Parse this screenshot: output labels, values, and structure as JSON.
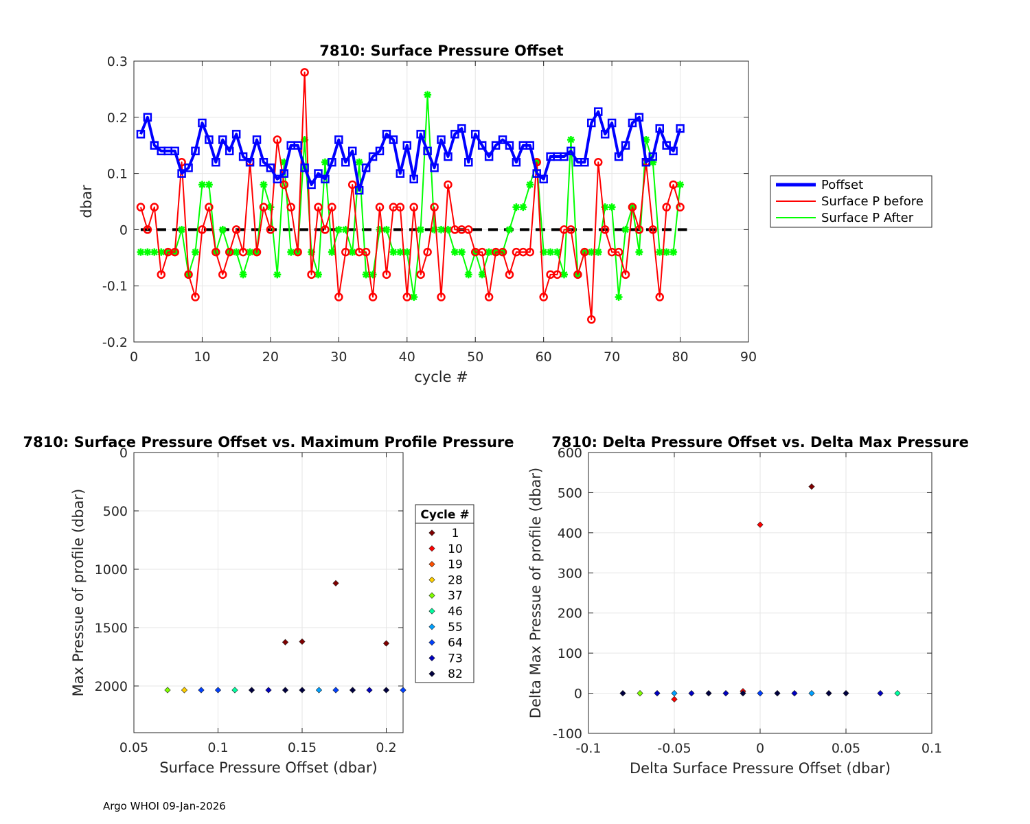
{
  "footer": "Argo WHOI 09-Jan-2026",
  "colors": {
    "poffset": "#0000ff",
    "before": "#ff0000",
    "after": "#00ff00",
    "zero_line": "#000000",
    "grid": "#e6e6e6",
    "cycle_colormap": [
      "#800000",
      "#ff0000",
      "#ff5000",
      "#ffd000",
      "#80ff00",
      "#00ffa0",
      "#00a0ff",
      "#0040ff",
      "#0000c0",
      "#000040"
    ]
  },
  "chart_data": [
    {
      "type": "line",
      "title": "7810: Surface Pressure Offset",
      "xlabel": "cycle #",
      "ylabel": "dbar",
      "xlim": [
        0,
        90
      ],
      "ylim": [
        -0.2,
        0.3
      ],
      "xticks": [
        0,
        10,
        20,
        30,
        40,
        50,
        60,
        70,
        80,
        90
      ],
      "yticks": [
        -0.2,
        -0.1,
        0,
        0.1,
        0.2,
        0.3
      ],
      "xtick_labels": [
        "0",
        "10",
        "20",
        "30",
        "40",
        "50",
        "60",
        "70",
        "80",
        "90"
      ],
      "ytick_labels": [
        "-0.2",
        "-0.1",
        "0",
        "0.1",
        "0.2",
        "0.3"
      ],
      "grid": true,
      "legend_position": "outside-right",
      "zero_line": {
        "x": [
          1,
          81
        ],
        "y": 0
      },
      "x": [
        1,
        2,
        3,
        4,
        5,
        6,
        7,
        8,
        9,
        10,
        11,
        12,
        13,
        14,
        15,
        16,
        17,
        18,
        19,
        20,
        21,
        22,
        23,
        24,
        25,
        26,
        27,
        28,
        29,
        30,
        31,
        32,
        33,
        34,
        35,
        36,
        37,
        38,
        39,
        40,
        41,
        42,
        43,
        44,
        45,
        46,
        47,
        48,
        49,
        50,
        51,
        52,
        53,
        54,
        55,
        56,
        57,
        58,
        59,
        60,
        61,
        62,
        63,
        64,
        65,
        66,
        67,
        68,
        69,
        70,
        71,
        72,
        73,
        74,
        75,
        76,
        77,
        78,
        79,
        80
      ],
      "series": [
        {
          "name": "Poffset",
          "marker": "square",
          "values": [
            0.17,
            0.2,
            0.15,
            0.14,
            0.14,
            0.14,
            0.1,
            0.11,
            0.14,
            0.19,
            0.16,
            0.12,
            0.16,
            0.14,
            0.17,
            0.13,
            0.12,
            0.16,
            0.12,
            0.11,
            0.09,
            0.1,
            0.15,
            0.15,
            0.11,
            0.08,
            0.1,
            0.09,
            0.12,
            0.16,
            0.12,
            0.14,
            0.07,
            0.11,
            0.13,
            0.14,
            0.17,
            0.16,
            0.1,
            0.15,
            0.09,
            0.17,
            0.14,
            0.11,
            0.16,
            0.13,
            0.17,
            0.18,
            0.12,
            0.17,
            0.15,
            0.13,
            0.15,
            0.16,
            0.15,
            0.12,
            0.15,
            0.15,
            0.1,
            0.09,
            0.13,
            0.13,
            0.13,
            0.14,
            0.12,
            0.12,
            0.19,
            0.21,
            0.17,
            0.19,
            0.13,
            0.15,
            0.19,
            0.2,
            0.12,
            0.13,
            0.18,
            0.15,
            0.14,
            0.18
          ]
        },
        {
          "name": "Surface P before",
          "marker": "circle",
          "values": [
            0.04,
            0.0,
            0.04,
            -0.08,
            -0.04,
            -0.04,
            0.12,
            -0.08,
            -0.12,
            0.0,
            0.04,
            -0.04,
            -0.08,
            -0.04,
            0.0,
            -0.04,
            0.12,
            -0.04,
            0.04,
            0.0,
            0.16,
            0.08,
            0.04,
            -0.04,
            0.28,
            -0.08,
            0.04,
            0.0,
            0.04,
            -0.12,
            -0.04,
            0.08,
            -0.04,
            -0.04,
            -0.12,
            0.04,
            -0.08,
            0.04,
            0.04,
            -0.12,
            0.04,
            -0.08,
            -0.04,
            0.04,
            -0.12,
            0.08,
            0.0,
            0.0,
            0.0,
            -0.04,
            -0.04,
            -0.12,
            -0.04,
            -0.04,
            -0.08,
            -0.04,
            -0.04,
            -0.04,
            0.12,
            -0.12,
            -0.08,
            -0.08,
            0.0,
            0.0,
            -0.08,
            -0.04,
            -0.16,
            0.12,
            0.0,
            -0.04,
            -0.04,
            -0.08,
            0.04,
            0.0,
            0.12,
            0.0,
            -0.12,
            0.04,
            0.08,
            0.04
          ]
        },
        {
          "name": "Surface P After",
          "marker": "asterisk",
          "values": [
            -0.04,
            -0.04,
            -0.04,
            -0.04,
            -0.04,
            -0.04,
            0.0,
            -0.08,
            -0.04,
            0.08,
            0.08,
            -0.04,
            0.0,
            -0.04,
            -0.04,
            -0.08,
            -0.04,
            -0.04,
            0.08,
            0.04,
            -0.08,
            0.12,
            -0.04,
            -0.04,
            0.16,
            -0.04,
            -0.08,
            0.12,
            -0.04,
            0.0,
            0.0,
            -0.04,
            0.12,
            -0.08,
            -0.08,
            0.0,
            0.0,
            -0.04,
            -0.04,
            -0.04,
            -0.12,
            0.0,
            0.24,
            0.0,
            0.0,
            0.0,
            -0.04,
            -0.04,
            -0.08,
            -0.04,
            -0.08,
            -0.04,
            -0.04,
            -0.04,
            0.0,
            0.04,
            0.04,
            0.08,
            0.12,
            -0.04,
            -0.04,
            -0.04,
            -0.08,
            0.16,
            -0.08,
            -0.04,
            -0.04,
            -0.04,
            0.04,
            0.04,
            -0.12,
            0.0,
            0.04,
            -0.04,
            0.16,
            0.12,
            -0.04,
            -0.04,
            -0.04,
            0.08
          ]
        }
      ]
    },
    {
      "type": "scatter",
      "title": "7810: Surface Pressure Offset vs. Maximum Profile Pressure",
      "xlabel": "Surface Pressure Offset (dbar)",
      "ylabel": "Max Pressue of profile (dbar)",
      "xlim": [
        0.05,
        0.21
      ],
      "ylim": [
        0,
        2400
      ],
      "y_reversed": true,
      "xticks": [
        0.05,
        0.1,
        0.15,
        0.2
      ],
      "yticks": [
        0,
        500,
        1000,
        1500,
        2000
      ],
      "xtick_labels": [
        "0.05",
        "0.1",
        "0.15",
        "0.2"
      ],
      "ytick_labels": [
        "0",
        "500",
        "1000",
        "1500",
        "2000"
      ],
      "grid": true,
      "legend": {
        "title": "Cycle #",
        "position": "outside-right",
        "entries": [
          "1",
          "10",
          "19",
          "28",
          "37",
          "46",
          "55",
          "64",
          "73",
          "82"
        ]
      },
      "points": [
        {
          "x": 0.17,
          "y": 1120,
          "c": 0
        },
        {
          "x": 0.14,
          "y": 1625,
          "c": 0
        },
        {
          "x": 0.15,
          "y": 1620,
          "c": 0
        },
        {
          "x": 0.2,
          "y": 1635,
          "c": 0
        },
        {
          "x": 0.07,
          "y": 2035,
          "c": 4
        },
        {
          "x": 0.08,
          "y": 2035,
          "c": 3
        },
        {
          "x": 0.09,
          "y": 2035,
          "c": 7
        },
        {
          "x": 0.1,
          "y": 2035,
          "c": 7
        },
        {
          "x": 0.11,
          "y": 2035,
          "c": 5
        },
        {
          "x": 0.12,
          "y": 2035,
          "c": 9
        },
        {
          "x": 0.13,
          "y": 2035,
          "c": 8
        },
        {
          "x": 0.14,
          "y": 2035,
          "c": 9
        },
        {
          "x": 0.15,
          "y": 2035,
          "c": 9
        },
        {
          "x": 0.16,
          "y": 2035,
          "c": 6
        },
        {
          "x": 0.17,
          "y": 2035,
          "c": 7
        },
        {
          "x": 0.18,
          "y": 2035,
          "c": 9
        },
        {
          "x": 0.19,
          "y": 2035,
          "c": 8
        },
        {
          "x": 0.2,
          "y": 2035,
          "c": 9
        },
        {
          "x": 0.21,
          "y": 2035,
          "c": 7
        }
      ]
    },
    {
      "type": "scatter",
      "title": "7810: Delta Pressure Offset vs. Delta Max Pressure",
      "xlabel": "Delta Surface Pressure Offset (dbar)",
      "ylabel": "Delta Max Pressue of profile (dbar)",
      "xlim": [
        -0.1,
        0.1
      ],
      "ylim": [
        -100,
        600
      ],
      "xticks": [
        -0.1,
        -0.05,
        0,
        0.05,
        0.1
      ],
      "yticks": [
        -100,
        0,
        100,
        200,
        300,
        400,
        500,
        600
      ],
      "xtick_labels": [
        "-0.1",
        "-0.05",
        "0",
        "0.05",
        "0.1"
      ],
      "ytick_labels": [
        "-100",
        "0",
        "100",
        "200",
        "300",
        "400",
        "500",
        "600"
      ],
      "grid": true,
      "points": [
        {
          "x": 0.03,
          "y": 515,
          "c": 0
        },
        {
          "x": 0.0,
          "y": 420,
          "c": 1
        },
        {
          "x": -0.05,
          "y": -15,
          "c": 1
        },
        {
          "x": -0.01,
          "y": 5,
          "c": 1
        },
        {
          "x": -0.08,
          "y": 0,
          "c": 9
        },
        {
          "x": -0.07,
          "y": 0,
          "c": 4
        },
        {
          "x": -0.06,
          "y": 0,
          "c": 8
        },
        {
          "x": -0.05,
          "y": 0,
          "c": 6
        },
        {
          "x": -0.04,
          "y": 0,
          "c": 8
        },
        {
          "x": -0.03,
          "y": 0,
          "c": 9
        },
        {
          "x": -0.02,
          "y": 0,
          "c": 8
        },
        {
          "x": -0.01,
          "y": 0,
          "c": 9
        },
        {
          "x": 0.0,
          "y": 0,
          "c": 7
        },
        {
          "x": 0.01,
          "y": 0,
          "c": 9
        },
        {
          "x": 0.02,
          "y": 0,
          "c": 8
        },
        {
          "x": 0.03,
          "y": 0,
          "c": 6
        },
        {
          "x": 0.04,
          "y": 0,
          "c": 9
        },
        {
          "x": 0.05,
          "y": 0,
          "c": 9
        },
        {
          "x": 0.07,
          "y": 0,
          "c": 8
        },
        {
          "x": 0.08,
          "y": 0,
          "c": 5
        }
      ]
    }
  ]
}
